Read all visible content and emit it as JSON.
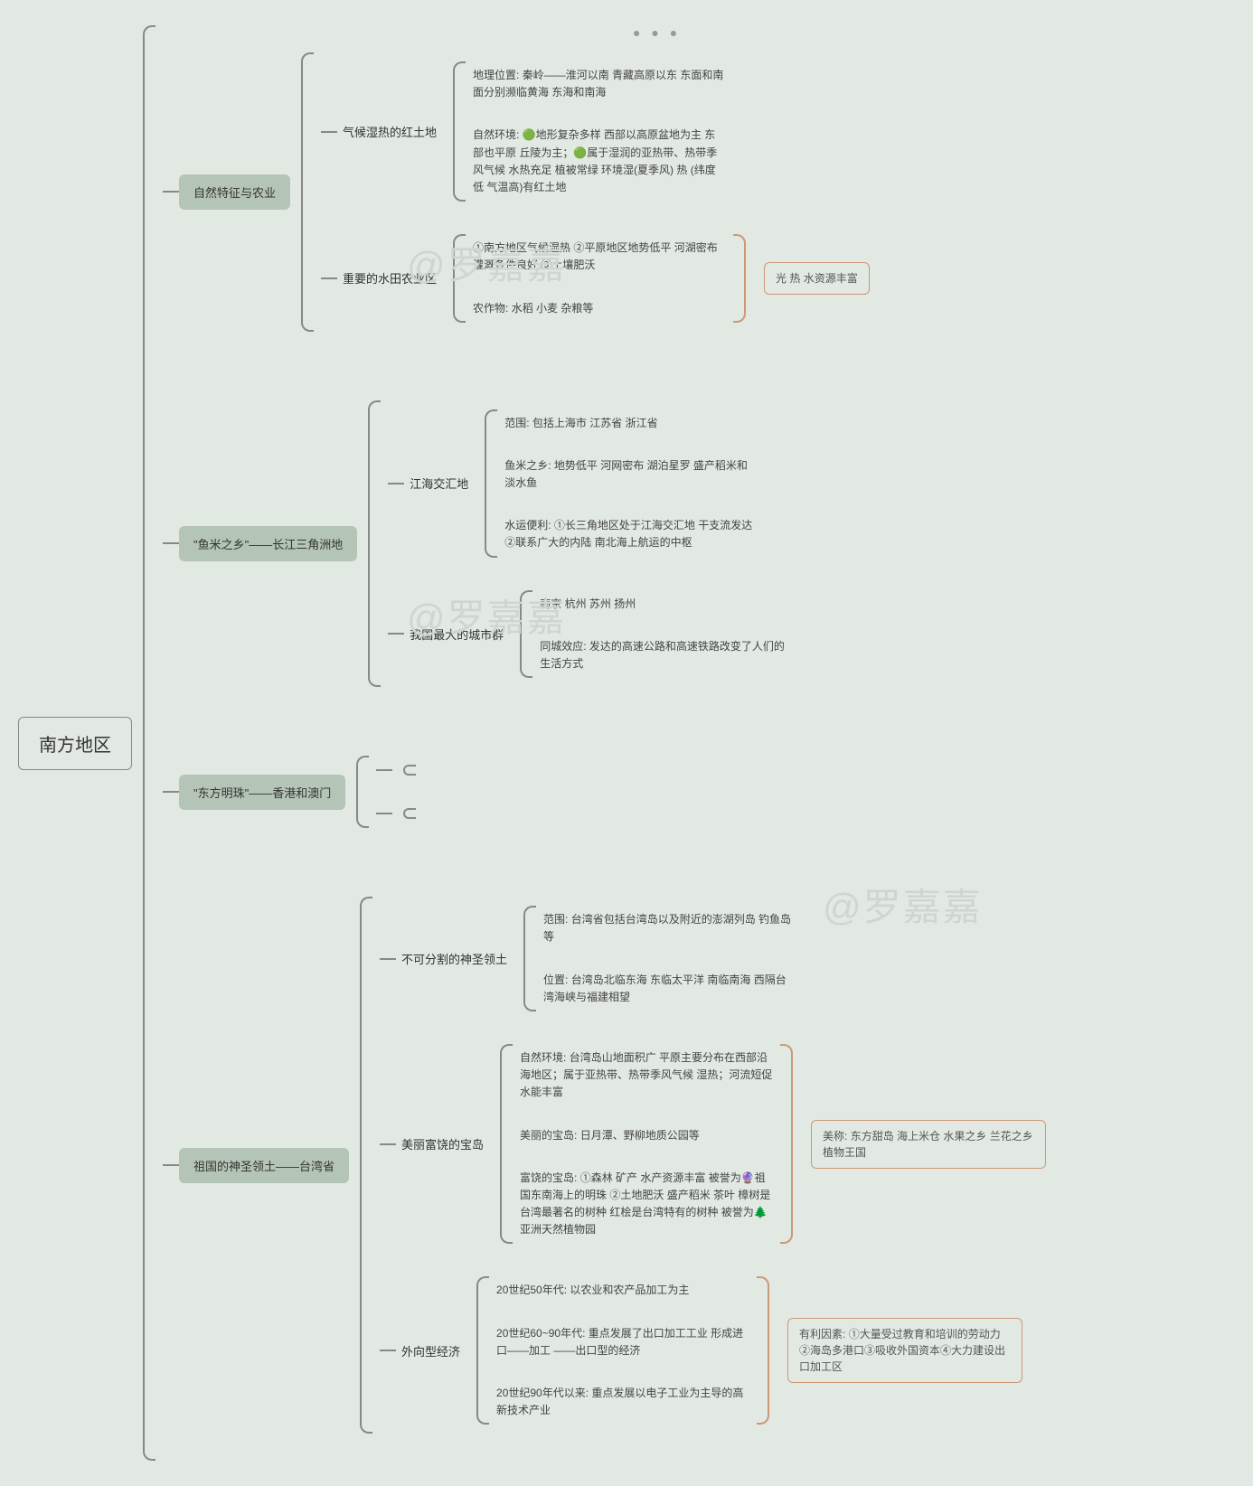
{
  "root": "南方地区",
  "watermark": "@罗嘉嘉",
  "dots": "● ● ●",
  "branches": [
    {
      "label": "自然特征与农业",
      "subs": [
        {
          "label": "气候湿热的红土地",
          "leaves": [
            "地理位置: 秦岭——淮河以南 青藏高原以东 东面和南面分别濒临黄海 东海和南海",
            "自然环境: 🟢地形复杂多样 西部以高原盆地为主 东部也平原 丘陵为主；🟢属于湿润的亚热带、热带季风气候 水热充足 植被常绿 环境湿(夏季风) 热 (纬度低 气温高)有红土地"
          ]
        },
        {
          "label": "重要的水田农业区",
          "leaves": [
            "①南方地区气候湿热 ②平原地区地势低平 河湖密布 灌溉条件良好 ③土壤肥沃",
            "农作物: 水稻 小麦 杂粮等"
          ],
          "aside": "光 热 水资源丰富"
        }
      ]
    },
    {
      "label": "\"鱼米之乡\"——长江三角洲地",
      "subs": [
        {
          "label": "江海交汇地",
          "leaves": [
            "范围: 包括上海市 江苏省 浙江省",
            "鱼米之乡: 地势低平 河网密布 湖泊星罗 盛产稻米和淡水鱼",
            "水运便利: ①长三角地区处于江海交汇地 干支流发达 ②联系广大的内陆 南北海上航运的中枢"
          ]
        },
        {
          "label": "我国最大的城市群",
          "leaves": [
            "南京 杭州 苏州 扬州",
            "同城效应: 发达的高速公路和高速铁路改变了人们的生活方式"
          ]
        }
      ]
    },
    {
      "label": "\"东方明珠\"——香港和澳门",
      "subs": [
        {
          "label": "",
          "leaves": [
            ""
          ]
        },
        {
          "label": "",
          "leaves": [
            ""
          ]
        }
      ]
    },
    {
      "label": "祖国的神圣领土——台湾省",
      "subs": [
        {
          "label": "不可分割的神圣领土",
          "leaves": [
            "范围: 台湾省包括台湾岛以及附近的澎湖列岛 钓鱼岛等",
            "位置: 台湾岛北临东海 东临太平洋 南临南海 西隔台湾海峡与福建相望"
          ]
        },
        {
          "label": "美丽富饶的宝岛",
          "leaves": [
            "自然环境: 台湾岛山地面积广 平原主要分布在西部沿海地区；属于亚热带、热带季风气候 湿热；河流短促 水能丰富",
            "美丽的宝岛: 日月潭、野柳地质公园等",
            "富饶的宝岛: ①森林 矿产 水产资源丰富 被誉为🔮祖国东南海上的明珠 ②土地肥沃 盛产稻米 茶叶 樟树是台湾最著名的树种 红桧是台湾特有的树种 被誉为🌲亚洲天然植物园"
          ],
          "aside": "美称: 东方甜岛 海上米仓 水果之乡 兰花之乡 植物王国"
        },
        {
          "label": "外向型经济",
          "leaves": [
            "20世纪50年代: 以农业和农产品加工为主",
            "20世纪60~90年代: 重点发展了出口加工工业 形成进口——加工 ——出口型的经济",
            "20世纪90年代以来: 重点发展以电子工业为主导的高新技术产业"
          ],
          "aside": "有利因素: ①大量受过教育和培训的劳动力②海岛多港口③吸收外国资本④大力建设出口加工区"
        }
      ]
    }
  ]
}
